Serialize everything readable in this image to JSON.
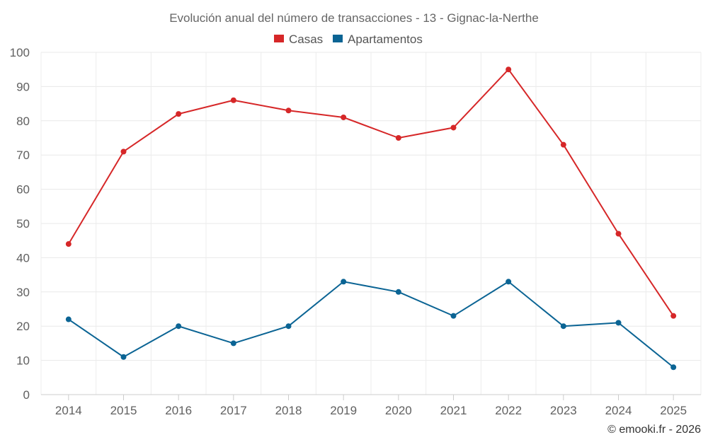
{
  "chart_data": {
    "type": "line",
    "title": "Evolución anual del número de transacciones - 13 - Gignac-la-Nerthe",
    "categories": [
      "2014",
      "2015",
      "2016",
      "2017",
      "2018",
      "2019",
      "2020",
      "2021",
      "2022",
      "2023",
      "2024",
      "2025"
    ],
    "series": [
      {
        "name": "Casas",
        "color": "#d62728",
        "values": [
          44,
          71,
          82,
          86,
          83,
          81,
          75,
          78,
          95,
          73,
          47,
          23
        ]
      },
      {
        "name": "Apartamentos",
        "color": "#0b6494",
        "values": [
          22,
          11,
          20,
          15,
          20,
          33,
          30,
          23,
          33,
          20,
          21,
          8
        ]
      }
    ],
    "ylim": [
      0,
      100
    ],
    "yticks": [
      0,
      10,
      20,
      30,
      40,
      50,
      60,
      70,
      80,
      90,
      100
    ],
    "grid": true,
    "legend_position": "top-center",
    "xlabel": "",
    "ylabel": ""
  },
  "credit": "© emooki.fr - 2026"
}
